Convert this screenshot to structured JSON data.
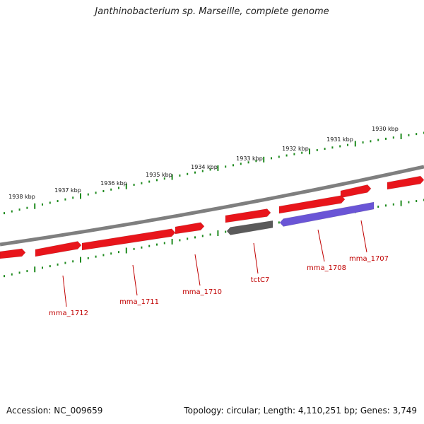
{
  "title": "Janthinobacterium sp. Marseille, complete genome",
  "footer": {
    "accession": "Accession: NC_009659",
    "summary": "Topology: circular; Length: 4,110,251 bp; Genes: 3,749"
  },
  "colors": {
    "backbone": "#7f7f7f",
    "ruler": "#1e8a1e",
    "gene_red": "#e8151b",
    "gene_gray": "#5a5a5a",
    "gene_blue": "#6a55d6",
    "label": "#c00000",
    "leader": "#c00000"
  },
  "kbp_labels": [
    "1930 kbp",
    "1931 kbp",
    "1932 kbp",
    "1933 kbp",
    "1934 kbp",
    "1935 kbp",
    "1936 kbp",
    "1937 kbp",
    "1938 kbp"
  ],
  "genes": [
    {
      "id": "g1",
      "color": "gene_red",
      "strand": "forward",
      "labeled": false
    },
    {
      "id": "g2",
      "color": "gene_red",
      "strand": "forward",
      "labeled": false
    },
    {
      "id": "mma_1707",
      "color": "gene_red",
      "strand": "forward",
      "label": "mma_1707"
    },
    {
      "id": "mma_1708",
      "color": "gene_red",
      "strand": "forward",
      "label": "mma_1708"
    },
    {
      "id": "tctC7",
      "color": "gene_gray",
      "strand": "reverse",
      "label": "tctC7"
    },
    {
      "id": "blue",
      "color": "gene_blue",
      "strand": "reverse",
      "labeled": false
    },
    {
      "id": "mma_1710",
      "color": "gene_red",
      "strand": "forward",
      "label": "mma_1710"
    },
    {
      "id": "mma_1711",
      "color": "gene_red",
      "strand": "forward",
      "label": "mma_1711"
    },
    {
      "id": "mma_1712",
      "color": "gene_red",
      "strand": "forward",
      "label": "mma_1712"
    },
    {
      "id": "g_left",
      "color": "gene_red",
      "strand": "forward",
      "labeled": false
    }
  ]
}
